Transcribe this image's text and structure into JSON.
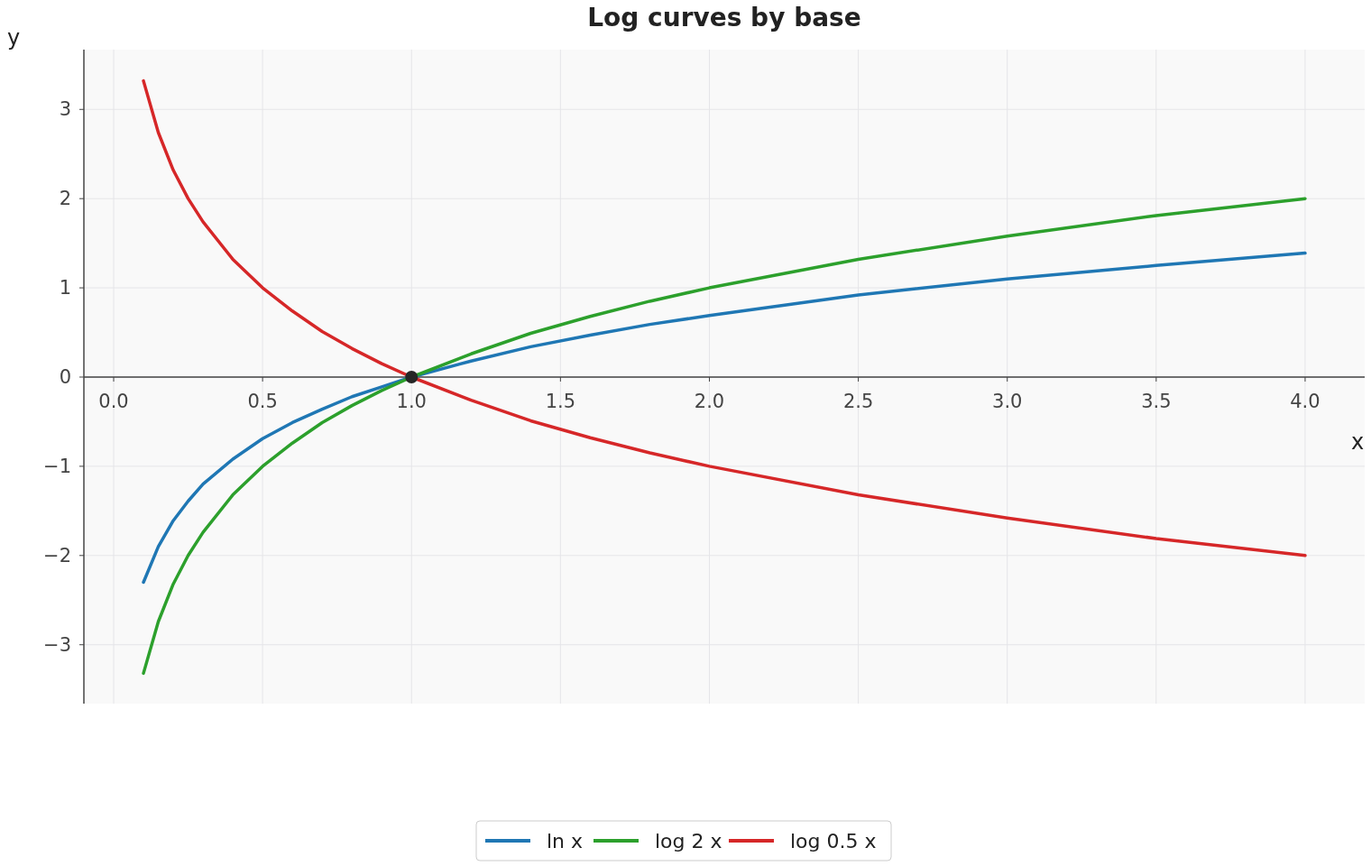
{
  "chart_data": {
    "type": "line",
    "title": "Log curves by base",
    "xlabel": "x",
    "ylabel": "y",
    "x": [
      0.1,
      0.15,
      0.2,
      0.25,
      0.3,
      0.4,
      0.5,
      0.6,
      0.7,
      0.8,
      0.9,
      1.0,
      1.2,
      1.4,
      1.6,
      1.8,
      2.0,
      2.5,
      3.0,
      3.5,
      4.0
    ],
    "series": [
      {
        "name": "ln x",
        "color": "#1f77b4",
        "values": [
          -2.3,
          -1.9,
          -1.61,
          -1.39,
          -1.2,
          -0.92,
          -0.69,
          -0.51,
          -0.36,
          -0.22,
          -0.11,
          0,
          0.18,
          0.34,
          0.47,
          0.59,
          0.69,
          0.92,
          1.1,
          1.25,
          1.39
        ]
      },
      {
        "name": "log 2 x",
        "color": "#2ca02c",
        "values": [
          -3.32,
          -2.74,
          -2.32,
          -2.0,
          -1.74,
          -1.32,
          -1.0,
          -0.74,
          -0.51,
          -0.32,
          -0.15,
          0,
          0.26,
          0.49,
          0.68,
          0.85,
          1.0,
          1.32,
          1.58,
          1.81,
          2.0
        ]
      },
      {
        "name": "log 0.5 x",
        "color": "#d62728",
        "values": [
          3.32,
          2.74,
          2.32,
          2.0,
          1.74,
          1.32,
          1.0,
          0.74,
          0.51,
          0.32,
          0.15,
          0,
          -0.26,
          -0.49,
          -0.68,
          -0.85,
          -1.0,
          -1.32,
          -1.58,
          -1.81,
          -2.0
        ]
      },
      {
        "type": "scatter",
        "color": "#262626",
        "x": [
          1.0
        ],
        "values": [
          0
        ],
        "marker": "circle"
      }
    ],
    "xlim": [
      -0.1,
      4.2
    ],
    "ylim": [
      -3.66,
      3.67
    ],
    "xticks": [
      {
        "value": 0,
        "label": "0.0"
      },
      {
        "value": 0.5,
        "label": "0.5"
      },
      {
        "value": 1,
        "label": "1.0"
      },
      {
        "value": 1.5,
        "label": "1.5"
      },
      {
        "value": 2,
        "label": "2.0"
      },
      {
        "value": 2.5,
        "label": "2.5"
      },
      {
        "value": 3,
        "label": "3.0"
      },
      {
        "value": 3.5,
        "label": "3.5"
      },
      {
        "value": 4,
        "label": "4.0"
      }
    ],
    "yticks": [
      {
        "value": -3,
        "label": "−3"
      },
      {
        "value": -2,
        "label": "−2"
      },
      {
        "value": -1,
        "label": "−1"
      },
      0,
      1,
      2,
      3
    ],
    "grid": true,
    "legend": "bottom",
    "marker": "none"
  }
}
